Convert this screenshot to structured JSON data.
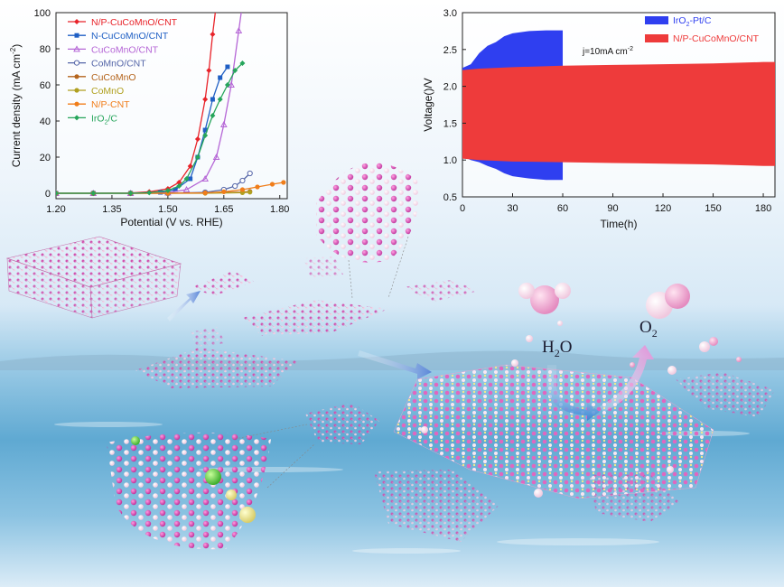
{
  "chart_data": [
    {
      "type": "line",
      "xlabel": "Potential (V vs. RHE)",
      "ylabel_main": "Current density (mA cm",
      "ylabel_sup": "-2",
      "ylabel_end": ")",
      "xlim": [
        1.2,
        1.82
      ],
      "ylim": [
        -3,
        100
      ],
      "xticks": [
        "1.20",
        "1.35",
        "1.50",
        "1.65",
        "1.80"
      ],
      "xtick_values": [
        1.2,
        1.35,
        1.5,
        1.65,
        1.8
      ],
      "yticks": [
        "0",
        "20",
        "40",
        "60",
        "80",
        "100"
      ],
      "ytick_values": [
        0,
        20,
        40,
        60,
        80,
        100
      ],
      "legend_position": "top-left",
      "series": [
        {
          "name": "N/P-CuCoMnO/CNT",
          "color": "#e8232a",
          "marker": "diamond",
          "x": [
            1.2,
            1.3,
            1.4,
            1.45,
            1.5,
            1.53,
            1.56,
            1.58,
            1.6,
            1.61,
            1.62,
            1.63
          ],
          "y": [
            0,
            0,
            0.2,
            0.8,
            2.5,
            6,
            15,
            30,
            52,
            68,
            88,
            105
          ]
        },
        {
          "name": "N-CuCoMnO/CNT",
          "color": "#1f5fc4",
          "marker": "square",
          "x": [
            1.2,
            1.3,
            1.4,
            1.48,
            1.52,
            1.56,
            1.58,
            1.6,
            1.62,
            1.64,
            1.66
          ],
          "y": [
            0,
            0,
            0,
            0.5,
            2,
            8,
            20,
            35,
            52,
            64,
            70
          ]
        },
        {
          "name": "CuCoMnO/CNT",
          "color": "#b566d6",
          "marker": "triangle",
          "x": [
            1.2,
            1.3,
            1.4,
            1.5,
            1.55,
            1.6,
            1.63,
            1.65,
            1.67,
            1.69,
            1.7
          ],
          "y": [
            0,
            0,
            0,
            0.3,
            2,
            8,
            20,
            38,
            60,
            90,
            105
          ]
        },
        {
          "name": "CoMnO/CNT",
          "color": "#5566a8",
          "marker": "circle-open",
          "x": [
            1.2,
            1.3,
            1.4,
            1.5,
            1.6,
            1.65,
            1.68,
            1.7,
            1.72
          ],
          "y": [
            0,
            0,
            0,
            0,
            0.5,
            2,
            4,
            7,
            11
          ]
        },
        {
          "name": "CuCoMnO",
          "color": "#b5651d",
          "marker": "circle",
          "x": [
            1.2,
            1.3,
            1.4,
            1.5,
            1.6,
            1.7,
            1.72
          ],
          "y": [
            0,
            0,
            0,
            0,
            0.2,
            0.6,
            1
          ]
        },
        {
          "name": "CoMnO",
          "color": "#b0a020",
          "marker": "circle",
          "x": [
            1.2,
            1.3,
            1.4,
            1.5,
            1.6,
            1.7,
            1.72
          ],
          "y": [
            0,
            0,
            0,
            0,
            0,
            0.3,
            0.6
          ]
        },
        {
          "name": "N/P-CNT",
          "color": "#f07d1a",
          "marker": "circle",
          "x": [
            1.2,
            1.3,
            1.4,
            1.5,
            1.6,
            1.65,
            1.7,
            1.74,
            1.78,
            1.81
          ],
          "y": [
            0,
            0,
            0,
            0,
            0.2,
            0.8,
            2,
            3.5,
            5,
            6
          ]
        },
        {
          "name": "IrO2/C",
          "name_main": "IrO",
          "name_sub": "2",
          "name_end": "/C",
          "color": "#26a55b",
          "marker": "diamond",
          "x": [
            1.2,
            1.3,
            1.4,
            1.45,
            1.5,
            1.53,
            1.55,
            1.58,
            1.6,
            1.62,
            1.64,
            1.66,
            1.68,
            1.7
          ],
          "y": [
            0,
            0,
            0,
            0.3,
            1.5,
            4,
            8,
            20,
            32,
            43,
            52,
            60,
            68,
            72
          ]
        }
      ]
    },
    {
      "type": "area",
      "xlabel": "Time(h)",
      "ylabel": "Voltage(V)",
      "ylabel_main": "Voltage(",
      "ylabel_end": ")/V",
      "xlim": [
        0,
        187
      ],
      "ylim": [
        0.5,
        3.0
      ],
      "xticks": [
        "0",
        "30",
        "60",
        "90",
        "120",
        "150",
        "180"
      ],
      "xtick_values": [
        0,
        30,
        60,
        90,
        120,
        150,
        180
      ],
      "yticks": [
        "0.5",
        "1.0",
        "1.5",
        "2.0",
        "2.5",
        "3.0"
      ],
      "ytick_values": [
        0.5,
        1.0,
        1.5,
        2.0,
        2.5,
        3.0
      ],
      "annotation": "j=10mA cm",
      "annotation_sup": "-2",
      "legend_position": "top-right",
      "series": [
        {
          "name": "IrO2-Pt/C",
          "name_main": "IrO",
          "name_sub": "2",
          "name_end": "-Pt/C",
          "color": "#2f3ff0",
          "x": [
            0,
            5,
            10,
            15,
            20,
            25,
            30,
            40,
            50,
            58,
            60
          ],
          "upper": [
            2.25,
            2.3,
            2.45,
            2.55,
            2.6,
            2.68,
            2.72,
            2.75,
            2.76,
            2.76,
            2.76
          ],
          "lower": [
            1.05,
            1.0,
            0.97,
            0.92,
            0.88,
            0.82,
            0.78,
            0.75,
            0.73,
            0.73,
            0.73
          ]
        },
        {
          "name": "N/P-CuCoMnO/CNT",
          "color": "#ee3b3b",
          "x": [
            0,
            10,
            30,
            60,
            90,
            120,
            150,
            180,
            187
          ],
          "upper": [
            2.22,
            2.24,
            2.26,
            2.28,
            2.29,
            2.3,
            2.31,
            2.33,
            2.33
          ],
          "lower": [
            1.02,
            1.0,
            0.98,
            0.97,
            0.96,
            0.95,
            0.94,
            0.92,
            0.92
          ]
        }
      ]
    }
  ],
  "illustration": {
    "water_label_main": "H",
    "water_label_sub": "2",
    "water_label_end": "O",
    "oxygen_label_main": "O",
    "oxygen_label_sub": "2"
  }
}
